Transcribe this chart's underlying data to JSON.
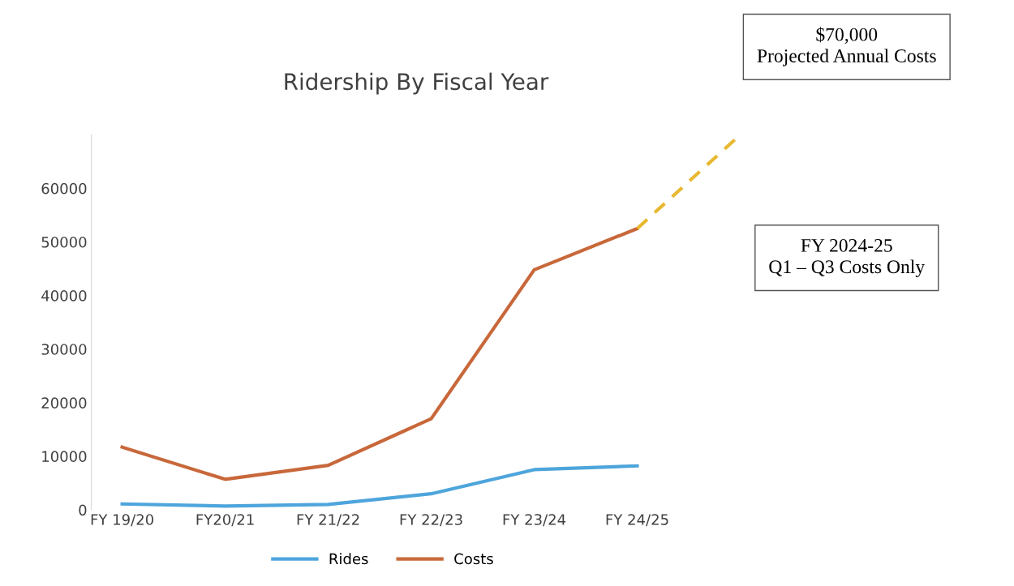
{
  "chart_data": {
    "type": "line",
    "title": "Ridership By Fiscal Year",
    "categories": [
      "FY 19/20",
      "FY20/21",
      "FY 21/22",
      "FY 22/23",
      "FY 23/24",
      "FY 24/25",
      null
    ],
    "series": [
      {
        "name": "Rides",
        "color": "#4ea5dc",
        "values": [
          1100,
          700,
          1000,
          3000,
          7500,
          8200,
          null
        ]
      },
      {
        "name": "Costs",
        "color": "#c8683a",
        "values": [
          11700,
          5700,
          8300,
          17000,
          44800,
          52500,
          null
        ]
      },
      {
        "color": "#e8b830",
        "line_style": "dashed",
        "values": [
          null,
          null,
          null,
          null,
          null,
          52500,
          70000
        ]
      }
    ],
    "ylim": [
      0,
      70000
    ],
    "yticks": [
      0,
      10000,
      20000,
      30000,
      40000,
      50000,
      60000
    ],
    "grid": false,
    "legend": "bottom",
    "annotations": [
      "$70,000\nProjected Annual Costs",
      "FY 2024-25\nQ1 – Q3 Costs Only"
    ]
  }
}
